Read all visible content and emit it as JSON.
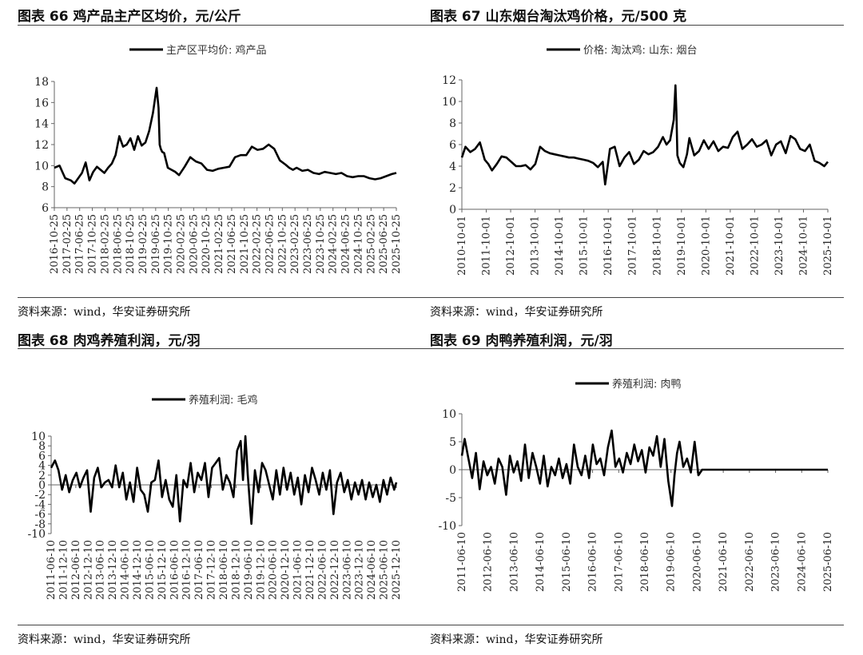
{
  "panels": [
    {
      "title": "图表 66 鸡产品主产区均价，元/公斤",
      "source": "资料来源：wind，华安证券研究所"
    },
    {
      "title": "图表 67 山东烟台淘汰鸡价格，元/500 克",
      "source": "资料来源：wind，华安证券研究所"
    },
    {
      "title": "图表 68 肉鸡养殖利润，元/羽",
      "source": "资料来源：wind，华安证券研究所"
    },
    {
      "title": "图表 69 肉鸭养殖利润，元/羽",
      "source": "资料来源：wind，华安证券研究所"
    }
  ],
  "chart_data": [
    {
      "type": "line",
      "title": "图表 66 鸡产品主产区均价，元/公斤",
      "legend": "主产区平均价: 鸡产品",
      "color": "#000000",
      "ylim": [
        6,
        18
      ],
      "yticks": [
        6,
        8,
        10,
        12,
        14,
        16,
        18
      ],
      "xlim": [
        2016.81,
        2025.97
      ],
      "xticks": [
        "2016-10-25",
        "2017-02-25",
        "2017-06-25",
        "2017-10-25",
        "2018-02-25",
        "2018-06-25",
        "2018-10-25",
        "2019-02-25",
        "2019-06-25",
        "2019-10-25",
        "2020-02-25",
        "2020-06-25",
        "2020-10-25",
        "2021-02-25",
        "2021-06-25",
        "2021-10-25",
        "2022-02-25",
        "2022-06-25",
        "2022-10-25",
        "2023-02-25",
        "2023-06-25",
        "2023-10-25",
        "2024-02-25",
        "2024-06-25",
        "2024-10-25",
        "2025-02-25",
        "2025-06-25",
        "2025-10-25"
      ],
      "series": [
        {
          "x": [
            2016.81,
            2016.95,
            2017.1,
            2017.25,
            2017.35,
            2017.45,
            2017.55,
            2017.65,
            2017.75,
            2017.85,
            2017.95,
            2018.05,
            2018.15,
            2018.25,
            2018.35,
            2018.45,
            2018.55,
            2018.65,
            2018.75,
            2018.85,
            2018.95,
            2019.05,
            2019.15,
            2019.25,
            2019.35,
            2019.45,
            2019.55,
            2019.6,
            2019.63,
            2019.66,
            2019.7,
            2019.75,
            2019.85,
            2019.95,
            2020.05,
            2020.15,
            2020.3,
            2020.45,
            2020.6,
            2020.75,
            2020.9,
            2021.05,
            2021.2,
            2021.35,
            2021.5,
            2021.65,
            2021.8,
            2021.95,
            2022.1,
            2022.25,
            2022.4,
            2022.55,
            2022.7,
            2022.85,
            2023.0,
            2023.1,
            2023.2,
            2023.3,
            2023.45,
            2023.6,
            2023.75,
            2023.9,
            2024.05,
            2024.2,
            2024.35,
            2024.5,
            2024.65,
            2024.8,
            2024.95,
            2025.1,
            2025.25,
            2025.4,
            2025.55,
            2025.7,
            2025.85,
            2025.97
          ],
          "y": [
            9.8,
            10.0,
            8.8,
            8.6,
            8.3,
            8.8,
            9.3,
            10.3,
            8.6,
            9.4,
            9.9,
            9.6,
            9.3,
            9.8,
            10.2,
            11.0,
            12.8,
            11.8,
            12.0,
            12.6,
            11.5,
            12.8,
            11.9,
            12.2,
            13.3,
            15.0,
            17.4,
            15.5,
            12.0,
            11.6,
            11.3,
            11.2,
            9.8,
            9.6,
            9.4,
            9.1,
            9.9,
            10.8,
            10.4,
            10.2,
            9.6,
            9.5,
            9.7,
            9.8,
            9.9,
            10.8,
            11.0,
            11.0,
            11.8,
            11.5,
            11.6,
            12.0,
            11.6,
            10.5,
            10.1,
            9.8,
            9.6,
            9.8,
            9.5,
            9.6,
            9.3,
            9.2,
            9.4,
            9.3,
            9.2,
            9.3,
            9.0,
            8.9,
            9.0,
            9.0,
            8.8,
            8.7,
            8.8,
            9.0,
            9.2,
            9.3
          ]
        }
      ]
    },
    {
      "type": "line",
      "title": "图表 67 山东烟台淘汰鸡价格，元/500 克",
      "legend": "价格: 淘汰鸡: 山东: 烟台",
      "color": "#000000",
      "ylim": [
        0,
        12
      ],
      "yticks": [
        0,
        2,
        4,
        6,
        8,
        10,
        12
      ],
      "xlim": [
        2010.75,
        2025.95
      ],
      "xticks": [
        "2010-10-01",
        "2011-10-01",
        "2012-10-01",
        "2013-10-01",
        "2014-10-01",
        "2015-10-01",
        "2016-10-01",
        "2017-10-01",
        "2018-10-01",
        "2019-10-01",
        "2020-10-01",
        "2021-10-01",
        "2022-10-01",
        "2023-10-01",
        "2024-10-01",
        "2025-10-01"
      ],
      "series": [
        {
          "x": [
            2010.75,
            2010.9,
            2011.1,
            2011.3,
            2011.5,
            2011.7,
            2011.85,
            2012.0,
            2012.2,
            2012.4,
            2012.6,
            2012.8,
            2013.0,
            2013.2,
            2013.4,
            2013.6,
            2013.8,
            2014.0,
            2014.2,
            2014.4,
            2014.6,
            2014.8,
            2015.0,
            2015.2,
            2015.4,
            2015.6,
            2015.8,
            2016.0,
            2016.2,
            2016.4,
            2016.6,
            2016.7,
            2016.8,
            2016.9,
            2017.1,
            2017.3,
            2017.5,
            2017.7,
            2017.9,
            2018.1,
            2018.3,
            2018.5,
            2018.7,
            2018.9,
            2019.1,
            2019.25,
            2019.4,
            2019.55,
            2019.62,
            2019.66,
            2019.7,
            2019.8,
            2019.95,
            2020.1,
            2020.2,
            2020.4,
            2020.6,
            2020.8,
            2021.0,
            2021.2,
            2021.4,
            2021.6,
            2021.8,
            2022.0,
            2022.2,
            2022.4,
            2022.6,
            2022.8,
            2023.0,
            2023.2,
            2023.4,
            2023.6,
            2023.8,
            2024.0,
            2024.2,
            2024.4,
            2024.6,
            2024.8,
            2025.0,
            2025.2,
            2025.4,
            2025.6,
            2025.8,
            2025.95
          ],
          "y": [
            4.8,
            5.8,
            5.3,
            5.6,
            6.2,
            4.6,
            4.2,
            3.6,
            4.2,
            4.9,
            4.8,
            4.4,
            4.0,
            4.0,
            4.1,
            3.7,
            4.2,
            5.8,
            5.4,
            5.2,
            5.1,
            5.0,
            4.9,
            4.8,
            4.8,
            4.7,
            4.6,
            4.5,
            4.3,
            3.9,
            4.4,
            2.3,
            3.9,
            5.6,
            5.8,
            4.0,
            4.8,
            5.3,
            4.2,
            4.6,
            5.4,
            5.1,
            5.3,
            5.8,
            6.7,
            6.0,
            6.4,
            8.3,
            11.5,
            9.0,
            5.0,
            4.3,
            3.9,
            5.1,
            6.6,
            5.0,
            5.4,
            6.4,
            5.6,
            6.3,
            5.4,
            5.8,
            5.7,
            6.7,
            7.2,
            5.6,
            6.0,
            6.5,
            5.8,
            6.0,
            6.4,
            5.0,
            6.0,
            6.3,
            5.2,
            6.8,
            6.5,
            5.6,
            5.4,
            6.0,
            4.5,
            4.3,
            4.0,
            4.4
          ]
        }
      ]
    },
    {
      "type": "line",
      "title": "图表 68 肉鸡养殖利润，元/羽",
      "legend": "养殖利润: 毛鸡",
      "color": "#000000",
      "ylim": [
        -10,
        10
      ],
      "yticks": [
        -10,
        -8,
        -6,
        -4,
        -2,
        0,
        2,
        4,
        6,
        8,
        10
      ],
      "xlim": [
        2011.44,
        2025.94
      ],
      "xticks": [
        "2011-06-10",
        "2011-12-10",
        "2012-06-10",
        "2012-12-10",
        "2013-06-10",
        "2013-12-10",
        "2014-06-10",
        "2014-12-10",
        "2015-06-10",
        "2015-12-10",
        "2016-06-10",
        "2016-12-10",
        "2017-06-10",
        "2017-12-10",
        "2018-06-10",
        "2018-12-10",
        "2019-06-10",
        "2019-12-10",
        "2020-06-10",
        "2020-12-10",
        "2021-06-10",
        "2021-12-10",
        "2022-06-10",
        "2022-12-10",
        "2023-06-10",
        "2023-12-10",
        "2024-06-10",
        "2025-06-10",
        "2025-12-10"
      ],
      "series": [
        {
          "x": [
            2011.44,
            2011.6,
            2011.75,
            2011.9,
            2012.05,
            2012.2,
            2012.35,
            2012.5,
            2012.65,
            2012.8,
            2012.95,
            2013.1,
            2013.25,
            2013.4,
            2013.55,
            2013.7,
            2013.85,
            2014.0,
            2014.15,
            2014.3,
            2014.45,
            2014.6,
            2014.75,
            2014.9,
            2015.05,
            2015.2,
            2015.35,
            2015.5,
            2015.65,
            2015.8,
            2015.95,
            2016.1,
            2016.25,
            2016.4,
            2016.55,
            2016.7,
            2016.85,
            2017.0,
            2017.15,
            2017.3,
            2017.45,
            2017.6,
            2017.75,
            2017.9,
            2018.05,
            2018.2,
            2018.35,
            2018.5,
            2018.65,
            2018.8,
            2018.95,
            2019.1,
            2019.25,
            2019.4,
            2019.5,
            2019.6,
            2019.7,
            2019.85,
            2020.0,
            2020.15,
            2020.3,
            2020.45,
            2020.6,
            2020.75,
            2020.9,
            2021.05,
            2021.2,
            2021.35,
            2021.5,
            2021.65,
            2021.8,
            2021.95,
            2022.1,
            2022.25,
            2022.4,
            2022.55,
            2022.7,
            2022.85,
            2023.0,
            2023.15,
            2023.3,
            2023.45,
            2023.6,
            2023.75,
            2023.9,
            2024.05,
            2024.2,
            2024.35,
            2024.5,
            2024.65,
            2024.8,
            2024.95,
            2025.1,
            2025.25,
            2025.4,
            2025.55,
            2025.7,
            2025.85,
            2025.94
          ],
          "y": [
            3.5,
            5.0,
            3.0,
            -1.0,
            2.0,
            -1.5,
            1.0,
            2.5,
            -0.5,
            1.5,
            3.0,
            -5.5,
            1.5,
            3.5,
            -0.5,
            0.5,
            1.0,
            -0.5,
            4.0,
            -0.5,
            2.5,
            -3.0,
            0.5,
            -3.5,
            3.5,
            -1.0,
            -2.0,
            -5.5,
            0.5,
            1.0,
            5.0,
            -2.5,
            1.0,
            -3.0,
            -4.5,
            2.0,
            -7.5,
            1.0,
            -0.5,
            4.5,
            -1.5,
            2.5,
            1.0,
            4.5,
            -2.5,
            3.5,
            4.5,
            5.5,
            -1.0,
            2.0,
            0.5,
            -2.5,
            7.0,
            9.0,
            1.0,
            10.0,
            2.0,
            -8.0,
            3.0,
            -1.5,
            4.5,
            3.0,
            0.0,
            -3.0,
            3.0,
            -2.0,
            3.5,
            -1.0,
            2.5,
            -2.0,
            1.5,
            -4.0,
            2.0,
            -1.5,
            3.5,
            1.0,
            -2.0,
            2.5,
            -1.0,
            3.0,
            -6.0,
            0.5,
            2.5,
            -1.5,
            1.0,
            -3.0,
            0.5,
            -2.0,
            1.0,
            -3.0,
            0.5,
            -2.5,
            0.0,
            -3.5,
            1.0,
            -2.0,
            1.5,
            -1.0,
            0.5
          ]
        }
      ]
    },
    {
      "type": "line",
      "title": "图表 69 肉鸭养殖利润，元/羽",
      "legend": "养殖利润: 肉鸭",
      "color": "#000000",
      "ylim": [
        -10,
        10
      ],
      "yticks": [
        -10,
        -5,
        0,
        5,
        10
      ],
      "xlim": [
        2011.44,
        2026.0
      ],
      "xticks": [
        "2011-06-10",
        "2012-06-10",
        "2013-06-10",
        "2014-06-10",
        "2015-06-10",
        "2016-06-10",
        "2017-06-10",
        "2018-06-10",
        "2019-06-10",
        "2020-06-10",
        "2021-06-10",
        "2022-06-10",
        "2023-06-10",
        "2024-06-10",
        "2025-06-10"
      ],
      "series": [
        {
          "x": [
            2011.44,
            2011.55,
            2011.7,
            2011.85,
            2012.0,
            2012.15,
            2012.3,
            2012.45,
            2012.6,
            2012.75,
            2012.9,
            2013.05,
            2013.2,
            2013.35,
            2013.5,
            2013.65,
            2013.8,
            2013.95,
            2014.1,
            2014.25,
            2014.4,
            2014.55,
            2014.7,
            2014.85,
            2015.0,
            2015.15,
            2015.3,
            2015.45,
            2015.6,
            2015.75,
            2015.9,
            2016.05,
            2016.2,
            2016.35,
            2016.5,
            2016.65,
            2016.8,
            2016.95,
            2017.1,
            2017.25,
            2017.4,
            2017.55,
            2017.7,
            2017.85,
            2018.0,
            2018.15,
            2018.3,
            2018.45,
            2018.6,
            2018.75,
            2018.9,
            2019.05,
            2019.2,
            2019.35,
            2019.5,
            2019.65,
            2019.8,
            2019.9,
            2020.0,
            2020.1,
            2020.25,
            2020.4,
            2020.55,
            2020.7,
            2020.85,
            2021.0,
            2021.2,
            2021.5,
            2022.0,
            2022.5,
            2023.0,
            2023.5,
            2024.0,
            2024.5,
            2025.0,
            2025.5,
            2026.0
          ],
          "y": [
            2.5,
            5.5,
            2.0,
            -1.5,
            3.0,
            -3.5,
            1.5,
            -1.0,
            0.5,
            -2.5,
            2.0,
            0.5,
            -4.5,
            2.5,
            -0.5,
            1.5,
            -2.0,
            4.5,
            -1.5,
            3.0,
            0.5,
            -2.5,
            2.5,
            -3.0,
            0.5,
            -1.0,
            2.0,
            -1.5,
            1.0,
            -2.5,
            4.5,
            0.5,
            -1.0,
            2.5,
            -1.5,
            4.5,
            1.0,
            2.0,
            -1.0,
            4.0,
            7.0,
            0.5,
            2.0,
            -0.5,
            3.0,
            1.0,
            4.5,
            1.5,
            3.5,
            -0.5,
            4.0,
            2.5,
            6.0,
            0.5,
            5.5,
            -2.0,
            -6.5,
            -1.0,
            3.0,
            5.0,
            0.5,
            2.0,
            -0.5,
            5.0,
            -1.0,
            0.0,
            0.0,
            0.0,
            0.0,
            0.0,
            0.0,
            0.0,
            0.0,
            0.0,
            0.0,
            0.0,
            0.0
          ]
        }
      ]
    }
  ]
}
